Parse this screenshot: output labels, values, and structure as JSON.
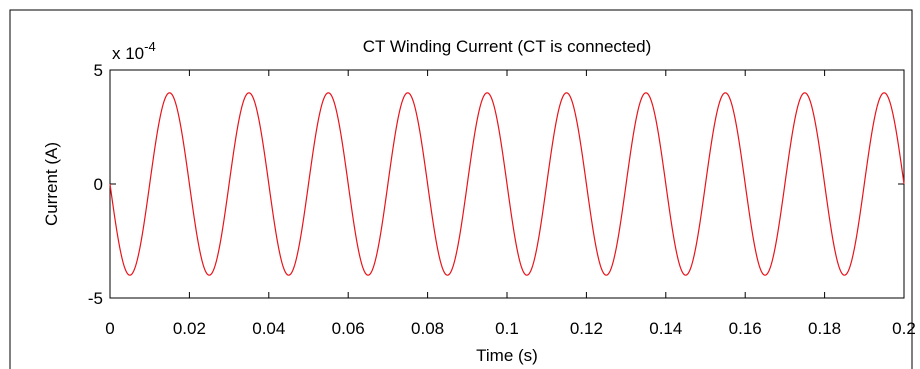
{
  "chart_data": {
    "type": "line",
    "title": "CT Winding Current (CT is connected)",
    "xlabel": "Time (s)",
    "ylabel": "Current (A)",
    "y_exponent_label": "x 10",
    "y_exponent_power": "-4",
    "xlim": [
      0,
      0.2
    ],
    "ylim": [
      -5,
      5
    ],
    "y_scale_factor": 0.0001,
    "x_ticks": [
      0,
      0.02,
      0.04,
      0.06,
      0.08,
      0.1,
      0.12,
      0.14,
      0.16,
      0.18,
      0.2
    ],
    "x_tick_labels": [
      "0",
      "0.02",
      "0.04",
      "0.06",
      "0.08",
      "0.1",
      "0.12",
      "0.14",
      "0.16",
      "0.18",
      "0.2"
    ],
    "y_ticks": [
      -5,
      0,
      5
    ],
    "y_tick_labels": [
      "-5",
      "0",
      "5"
    ],
    "grid": false,
    "series": [
      {
        "color": "#e8141b",
        "x": [
          0,
          0.005,
          0.01,
          0.015,
          0.02,
          0.025,
          0.03,
          0.035,
          0.04,
          0.045,
          0.05,
          0.055,
          0.06,
          0.065,
          0.07,
          0.075,
          0.08,
          0.085,
          0.09,
          0.095,
          0.1,
          0.105,
          0.11,
          0.115,
          0.12,
          0.125,
          0.13,
          0.135,
          0.14,
          0.145,
          0.15,
          0.155,
          0.16,
          0.165,
          0.17,
          0.175,
          0.18,
          0.185,
          0.19,
          0.195,
          0.2
        ],
        "y": [
          0,
          -4,
          0,
          4,
          0,
          -4,
          0,
          4,
          0,
          -4,
          0,
          4,
          0,
          -4,
          0,
          4,
          0,
          -4,
          0,
          4,
          0,
          -4,
          0,
          4,
          0,
          -4,
          0,
          4,
          0,
          -4,
          0,
          4,
          0,
          -4,
          0,
          4,
          0,
          -4,
          0,
          4,
          0
        ],
        "waveform": "sinusoid",
        "amplitude": 4,
        "frequency_hz": 50,
        "phase": "negative sine"
      }
    ]
  }
}
